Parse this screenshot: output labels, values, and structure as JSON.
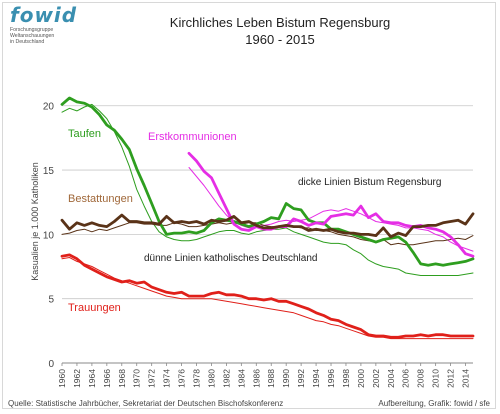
{
  "logo": {
    "mark": "fowid",
    "lines": [
      "Forschungsgruppe",
      "Weltanschauungen",
      "in Deutschland"
    ]
  },
  "title": "Kirchliches Leben Bistum Regensburg",
  "subtitle": "1960 - 2015",
  "source": "Quelle: Statistische Jahrbücher, Sekretariat der Deutschen Bischofskonferenz",
  "credit": "Aufbereitung, Grafik: fowid / sfe",
  "colors": {
    "taufen": "#2e9e1f",
    "erstkommunionen": "#e52ee5",
    "bestattungen": "#5a3318",
    "trauungen": "#e0201a"
  },
  "chart_data": {
    "type": "line",
    "title": "Kirchliches Leben Bistum Regensburg",
    "subtitle": "1960 - 2015",
    "xlabel": "",
    "ylabel": "Kasualien je 1.000 Katholiken",
    "xlim": [
      1960,
      2015
    ],
    "ylim": [
      0,
      22
    ],
    "yticks": [
      0,
      5,
      10,
      15,
      20
    ],
    "xticks": [
      1960,
      1962,
      1964,
      1966,
      1968,
      1970,
      1972,
      1974,
      1976,
      1978,
      1980,
      1982,
      1984,
      1986,
      1988,
      1990,
      1992,
      1994,
      1996,
      1998,
      2000,
      2002,
      2004,
      2006,
      2008,
      2010,
      2012,
      2014
    ],
    "grid": "horizontal",
    "annotations": [
      {
        "text": "Taufen",
        "color": "#2e9e1f"
      },
      {
        "text": "Erstkommunionen",
        "color": "#e52ee5"
      },
      {
        "text": "Bestattungen",
        "color": "#a0683a"
      },
      {
        "text": "Trauungen",
        "color": "#e0201a"
      },
      {
        "text": "dicke Linien Bistum Regensburg",
        "color": "#222222"
      },
      {
        "text": "dünne Linien katholisches Deutschland",
        "color": "#222222"
      }
    ],
    "series": [
      {
        "name": "Taufen",
        "scope": "Bistum Regensburg",
        "color": "#2e9e1f",
        "thick": true,
        "x": [
          1960,
          1961,
          1962,
          1963,
          1964,
          1965,
          1966,
          1967,
          1968,
          1969,
          1970,
          1971,
          1972,
          1973,
          1974,
          1975,
          1976,
          1977,
          1978,
          1979,
          1980,
          1981,
          1982,
          1983,
          1984,
          1985,
          1986,
          1987,
          1988,
          1989,
          1990,
          1991,
          1992,
          1993,
          1994,
          1995,
          1996,
          1997,
          1998,
          1999,
          2000,
          2001,
          2002,
          2003,
          2004,
          2005,
          2006,
          2007,
          2008,
          2009,
          2010,
          2011,
          2012,
          2013,
          2014,
          2015
        ],
        "values": [
          20.1,
          20.6,
          20.3,
          20.2,
          19.9,
          19.3,
          18.5,
          18.1,
          17.4,
          16.6,
          15.1,
          13.8,
          12.4,
          11.0,
          10.0,
          10.1,
          10.1,
          10.2,
          10.1,
          10.3,
          10.9,
          11.2,
          11.1,
          11.0,
          10.8,
          10.6,
          10.8,
          11.0,
          11.3,
          11.2,
          12.4,
          12.0,
          11.9,
          11.1,
          10.9,
          10.9,
          10.4,
          10.4,
          10.2,
          10.0,
          9.8,
          9.6,
          9.4,
          9.6,
          9.7,
          9.8,
          9.4,
          8.6,
          7.7,
          7.6,
          7.7,
          7.6,
          7.7,
          7.8,
          7.9,
          8.1
        ]
      },
      {
        "name": "Taufen",
        "scope": "katholisches Deutschland",
        "color": "#2e9e1f",
        "thick": false,
        "x": [
          1960,
          1961,
          1962,
          1963,
          1964,
          1965,
          1966,
          1967,
          1968,
          1969,
          1970,
          1971,
          1972,
          1973,
          1974,
          1975,
          1976,
          1977,
          1978,
          1979,
          1980,
          1981,
          1982,
          1983,
          1984,
          1985,
          1986,
          1987,
          1988,
          1989,
          1990,
          1991,
          1992,
          1993,
          1994,
          1995,
          1996,
          1997,
          1998,
          1999,
          2000,
          2001,
          2002,
          2003,
          2004,
          2005,
          2006,
          2007,
          2008,
          2009,
          2010,
          2011,
          2012,
          2013,
          2014,
          2015
        ],
        "values": [
          19.5,
          19.8,
          19.6,
          19.9,
          20.1,
          19.6,
          19.0,
          18.0,
          16.8,
          15.3,
          13.5,
          12.2,
          11.0,
          10.2,
          9.8,
          9.6,
          9.5,
          9.5,
          9.6,
          9.8,
          10.0,
          10.2,
          10.3,
          10.3,
          10.1,
          10.0,
          10.2,
          10.3,
          10.4,
          10.4,
          10.5,
          10.2,
          10.0,
          9.8,
          9.6,
          9.4,
          9.3,
          9.3,
          9.2,
          8.8,
          8.5,
          8.0,
          7.7,
          7.5,
          7.4,
          7.3,
          7.0,
          6.9,
          6.8,
          6.8,
          6.8,
          6.8,
          6.8,
          6.8,
          6.9,
          7.0
        ]
      },
      {
        "name": "Erstkommunionen",
        "scope": "Bistum Regensburg",
        "color": "#e52ee5",
        "thick": true,
        "x": [
          1977,
          1978,
          1979,
          1980,
          1981,
          1982,
          1983,
          1984,
          1985,
          1986,
          1987,
          1988,
          1989,
          1990,
          1991,
          1992,
          1993,
          1994,
          1995,
          1996,
          1997,
          1998,
          1999,
          2000,
          2001,
          2002,
          2003,
          2004,
          2005,
          2006,
          2007,
          2008,
          2009,
          2010,
          2011,
          2012,
          2013,
          2014,
          2015
        ],
        "values": [
          16.3,
          15.7,
          14.9,
          14.4,
          13.2,
          12.0,
          10.8,
          10.4,
          10.3,
          10.6,
          10.4,
          10.4,
          10.6,
          10.6,
          11.2,
          11.0,
          10.7,
          10.9,
          10.8,
          11.4,
          11.5,
          11.6,
          11.5,
          12.2,
          11.3,
          11.6,
          11.0,
          10.9,
          10.9,
          10.7,
          10.6,
          10.7,
          10.5,
          10.4,
          10.2,
          9.8,
          9.2,
          8.5,
          8.3
        ]
      },
      {
        "name": "Erstkommunionen",
        "scope": "katholisches Deutschland",
        "color": "#e52ee5",
        "thick": false,
        "x": [
          1977,
          1978,
          1979,
          1980,
          1981,
          1982,
          1983,
          1984,
          1985,
          1986,
          1987,
          1988,
          1989,
          1990,
          1991,
          1992,
          1993,
          1994,
          1995,
          1996,
          1997,
          1998,
          1999,
          2000,
          2001,
          2002,
          2003,
          2004,
          2005,
          2006,
          2007,
          2008,
          2009,
          2010,
          2011,
          2012,
          2013,
          2014,
          2015
        ],
        "values": [
          15.2,
          14.5,
          13.8,
          13.0,
          12.2,
          11.5,
          11.0,
          10.7,
          10.5,
          10.6,
          10.7,
          10.8,
          11.0,
          11.1,
          11.0,
          11.1,
          11.2,
          11.5,
          11.8,
          11.9,
          11.8,
          12.0,
          11.8,
          11.6,
          11.3,
          11.0,
          10.9,
          10.8,
          10.7,
          10.5,
          10.5,
          10.4,
          10.3,
          10.0,
          9.8,
          9.4,
          9.1,
          8.9,
          8.7
        ]
      },
      {
        "name": "Bestattungen",
        "scope": "Bistum Regensburg",
        "color": "#5a3318",
        "thick": true,
        "x": [
          1960,
          1961,
          1962,
          1963,
          1964,
          1965,
          1966,
          1967,
          1968,
          1969,
          1970,
          1971,
          1972,
          1973,
          1974,
          1975,
          1976,
          1977,
          1978,
          1979,
          1980,
          1981,
          1982,
          1983,
          1984,
          1985,
          1986,
          1987,
          1988,
          1989,
          1990,
          1991,
          1992,
          1993,
          1994,
          1995,
          1996,
          1997,
          1998,
          1999,
          2000,
          2001,
          2002,
          2003,
          2004,
          2005,
          2006,
          2007,
          2008,
          2009,
          2010,
          2011,
          2012,
          2013,
          2014,
          2015
        ],
        "values": [
          11.1,
          10.4,
          10.9,
          10.7,
          10.9,
          10.7,
          10.6,
          11.0,
          11.5,
          11.0,
          11.0,
          10.9,
          10.9,
          10.8,
          11.4,
          10.9,
          11.0,
          10.9,
          11.0,
          10.8,
          11.1,
          11.0,
          11.1,
          11.4,
          10.9,
          11.0,
          10.7,
          10.5,
          10.5,
          10.6,
          10.7,
          10.6,
          10.6,
          10.3,
          10.4,
          10.3,
          10.4,
          10.2,
          10.1,
          10.1,
          10.0,
          10.0,
          9.9,
          10.5,
          9.8,
          10.1,
          9.9,
          10.6,
          10.6,
          10.7,
          10.7,
          10.9,
          11.0,
          11.1,
          10.8,
          11.6
        ]
      },
      {
        "name": "Bestattungen",
        "scope": "katholisches Deutschland",
        "color": "#5a3318",
        "thick": false,
        "x": [
          1960,
          1961,
          1962,
          1963,
          1964,
          1965,
          1966,
          1967,
          1968,
          1969,
          1970,
          1971,
          1972,
          1973,
          1974,
          1975,
          1976,
          1977,
          1978,
          1979,
          1980,
          1981,
          1982,
          1983,
          1984,
          1985,
          1986,
          1987,
          1988,
          1989,
          1990,
          1991,
          1992,
          1993,
          1994,
          1995,
          1996,
          1997,
          1998,
          1999,
          2000,
          2001,
          2002,
          2003,
          2004,
          2005,
          2006,
          2007,
          2008,
          2009,
          2010,
          2011,
          2012,
          2013,
          2014,
          2015
        ],
        "values": [
          10.0,
          10.1,
          10.3,
          10.4,
          10.2,
          10.4,
          10.3,
          10.5,
          10.7,
          10.9,
          10.9,
          10.8,
          10.8,
          10.7,
          10.7,
          10.9,
          10.8,
          10.6,
          10.6,
          10.7,
          10.8,
          10.9,
          10.8,
          10.9,
          10.8,
          10.9,
          10.9,
          10.7,
          10.6,
          10.6,
          10.7,
          10.6,
          10.5,
          10.5,
          10.3,
          10.3,
          10.2,
          10.0,
          9.9,
          9.8,
          9.6,
          9.5,
          9.4,
          9.6,
          9.2,
          9.3,
          9.2,
          9.2,
          9.3,
          9.4,
          9.5,
          9.5,
          9.6,
          9.7,
          9.6,
          9.9
        ]
      },
      {
        "name": "Trauungen",
        "scope": "Bistum Regensburg",
        "color": "#e0201a",
        "thick": true,
        "x": [
          1960,
          1961,
          1962,
          1963,
          1964,
          1965,
          1966,
          1967,
          1968,
          1969,
          1970,
          1971,
          1972,
          1973,
          1974,
          1975,
          1976,
          1977,
          1978,
          1979,
          1980,
          1981,
          1982,
          1983,
          1984,
          1985,
          1986,
          1987,
          1988,
          1989,
          1990,
          1991,
          1992,
          1993,
          1994,
          1995,
          1996,
          1997,
          1998,
          1999,
          2000,
          2001,
          2002,
          2003,
          2004,
          2005,
          2006,
          2007,
          2008,
          2009,
          2010,
          2011,
          2012,
          2013,
          2014,
          2015
        ],
        "values": [
          8.3,
          8.4,
          8.1,
          7.6,
          7.3,
          7.0,
          6.7,
          6.5,
          6.3,
          6.4,
          6.2,
          6.3,
          5.9,
          5.7,
          5.5,
          5.4,
          5.5,
          5.2,
          5.2,
          5.2,
          5.4,
          5.5,
          5.3,
          5.3,
          5.2,
          5.0,
          5.0,
          4.9,
          5.0,
          4.8,
          4.8,
          4.6,
          4.4,
          4.2,
          3.9,
          3.7,
          3.4,
          3.3,
          3.0,
          2.8,
          2.6,
          2.2,
          2.1,
          2.1,
          2.0,
          2.0,
          2.1,
          2.1,
          2.2,
          2.1,
          2.2,
          2.2,
          2.1,
          2.1,
          2.1,
          2.1
        ]
      },
      {
        "name": "Trauungen",
        "scope": "katholisches Deutschland",
        "color": "#e0201a",
        "thick": false,
        "x": [
          1960,
          1961,
          1962,
          1963,
          1964,
          1965,
          1966,
          1967,
          1968,
          1969,
          1970,
          1971,
          1972,
          1973,
          1974,
          1975,
          1976,
          1977,
          1978,
          1979,
          1980,
          1981,
          1982,
          1983,
          1984,
          1985,
          1986,
          1987,
          1988,
          1989,
          1990,
          1991,
          1992,
          1993,
          1994,
          1995,
          1996,
          1997,
          1998,
          1999,
          2000,
          2001,
          2002,
          2003,
          2004,
          2005,
          2006,
          2007,
          2008,
          2009,
          2010,
          2011,
          2012,
          2013,
          2014,
          2015
        ],
        "values": [
          8.1,
          8.2,
          7.9,
          7.7,
          7.5,
          7.2,
          6.9,
          6.6,
          6.4,
          6.2,
          6.0,
          5.8,
          5.6,
          5.4,
          5.2,
          5.1,
          5.0,
          5.0,
          5.0,
          5.0,
          5.0,
          4.9,
          4.8,
          4.7,
          4.6,
          4.5,
          4.4,
          4.3,
          4.2,
          4.1,
          4.0,
          3.9,
          3.7,
          3.5,
          3.3,
          3.2,
          3.0,
          2.9,
          2.7,
          2.5,
          2.3,
          2.1,
          2.0,
          2.0,
          1.9,
          1.9,
          1.9,
          1.9,
          1.9,
          1.9,
          1.9,
          1.9,
          1.9,
          1.9,
          1.9,
          1.9
        ]
      }
    ]
  }
}
